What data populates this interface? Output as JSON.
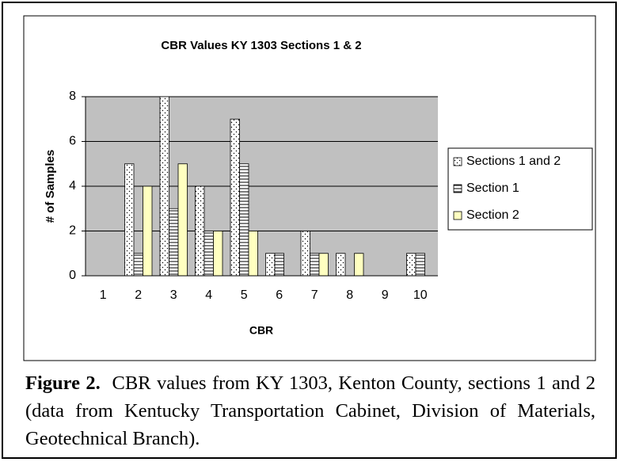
{
  "chart_data": {
    "type": "bar",
    "title": "CBR Values KY 1303 Sections 1 & 2",
    "x_label": "CBR",
    "y_label": "# of Samples",
    "categories": [
      "1",
      "2",
      "3",
      "4",
      "5",
      "6",
      "7",
      "8",
      "9",
      "10"
    ],
    "series": [
      {
        "name": "Sections 1 and 2",
        "color": "#ffffff",
        "values": [
          0,
          5,
          8,
          4,
          7,
          1,
          2,
          1,
          0,
          1
        ]
      },
      {
        "name": "Section 1",
        "color": "#ffffff",
        "values": [
          0,
          1,
          3,
          2,
          5,
          1,
          1,
          0,
          0,
          1
        ]
      },
      {
        "name": "Section 2",
        "color": "#ffffc0",
        "values": [
          0,
          4,
          5,
          2,
          2,
          0,
          1,
          1,
          0,
          0
        ]
      }
    ],
    "ylim": [
      0,
      8
    ],
    "yticks": [
      0,
      2,
      4,
      6,
      8
    ],
    "grid": true,
    "legend": "right",
    "plot_background": "#c0c0c0"
  },
  "caption": {
    "label": "Figure 2.",
    "text": "CBR values from KY 1303, Kenton County, sections 1 and 2 (data from Kentucky Transportation Cabinet, Division of Materials, Geotechnical Branch)."
  }
}
